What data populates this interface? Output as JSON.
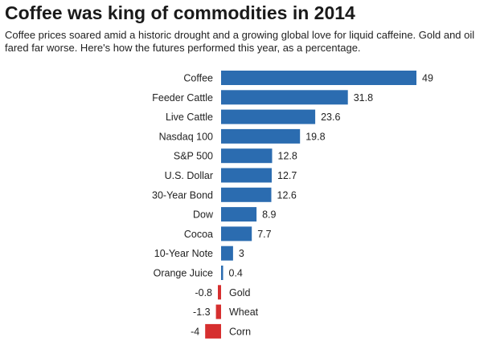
{
  "header": {
    "title": "Coffee was king of commodities in 2014",
    "subtitle": "Coffee prices soared amid a historic drought and a growing global love for liquid caffeine. Gold and oil fared far worse. Here's how the futures performed this year, as a percentage."
  },
  "colors": {
    "positive": "#2b6cb0",
    "negative": "#d62f2f"
  },
  "chart_data": {
    "type": "bar",
    "orientation": "horizontal",
    "title": "Coffee was king of commodities in 2014",
    "subtitle": "Coffee prices soared amid a historic drought and a growing global love for liquid caffeine. Gold and oil fared far worse. Here's how the futures performed this year, as a percentage.",
    "xlabel": "",
    "ylabel": "",
    "categories": [
      "Coffee",
      "Feeder Cattle",
      "Live Cattle",
      "Nasdaq 100",
      "S&P 500",
      "U.S. Dollar",
      "30-Year Bond",
      "Dow",
      "Cocoa",
      "10-Year Note",
      "Orange Juice",
      "Gold",
      "Wheat",
      "Corn"
    ],
    "values": [
      49,
      31.8,
      23.6,
      19.8,
      12.8,
      12.7,
      12.6,
      8.9,
      7.7,
      3,
      0.4,
      -0.8,
      -1.3,
      -4
    ],
    "value_labels": [
      "49",
      "31.8",
      "23.6",
      "19.8",
      "12.8",
      "12.7",
      "12.6",
      "8.9",
      "7.7",
      "3",
      "0.4",
      "-0.8",
      "-1.3",
      "-4"
    ],
    "xlim": [
      -4,
      49
    ],
    "grid": false,
    "legend": "none"
  }
}
